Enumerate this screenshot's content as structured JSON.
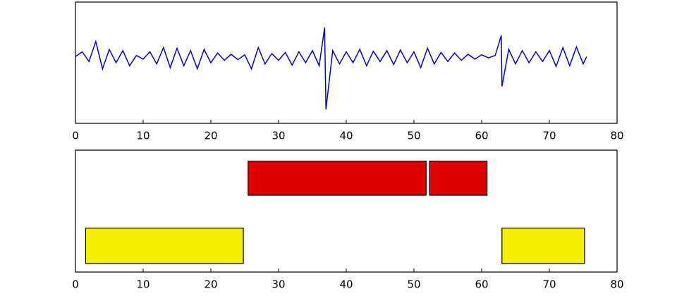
{
  "chart_data": [
    {
      "type": "line",
      "color": "#0000cc",
      "x": [
        0,
        1,
        2,
        3,
        4,
        5,
        6,
        7,
        8,
        9,
        10,
        11,
        12,
        13,
        14,
        15,
        16,
        17,
        18,
        19,
        20,
        21,
        22,
        23,
        24,
        25,
        26,
        27,
        28,
        29,
        30,
        31,
        32,
        33,
        34,
        35,
        36,
        36.8,
        37,
        38,
        39,
        40,
        41,
        42,
        43,
        44,
        45,
        46,
        47,
        48,
        49,
        50,
        51,
        52,
        53,
        54,
        55,
        56,
        57,
        58,
        59,
        60,
        61,
        62,
        62.9,
        63,
        64,
        65,
        66,
        67,
        68,
        69,
        70,
        71,
        72,
        73,
        74,
        75,
        75.5
      ],
      "values": [
        0.1,
        0.18,
        0.02,
        0.35,
        -0.1,
        0.22,
        0.0,
        0.2,
        -0.05,
        0.12,
        0.06,
        0.18,
        -0.02,
        0.25,
        -0.08,
        0.24,
        -0.05,
        0.2,
        -0.1,
        0.22,
        0.0,
        0.16,
        0.04,
        0.14,
        0.05,
        0.13,
        -0.1,
        0.25,
        -0.02,
        0.15,
        0.04,
        0.17,
        -0.04,
        0.18,
        0.0,
        0.2,
        -0.05,
        0.58,
        -0.77,
        0.2,
        -0.02,
        0.18,
        0.0,
        0.22,
        -0.05,
        0.19,
        0.02,
        0.2,
        -0.03,
        0.21,
        0.0,
        0.18,
        -0.08,
        0.24,
        -0.02,
        0.17,
        0.02,
        0.16,
        0.04,
        0.14,
        0.06,
        0.13,
        0.08,
        0.12,
        0.45,
        -0.39,
        0.22,
        -0.02,
        0.2,
        0.0,
        0.18,
        0.02,
        0.2,
        -0.06,
        0.25,
        -0.05,
        0.26,
        -0.02,
        0.1
      ],
      "xlim": [
        0,
        80
      ],
      "xticks": [
        0,
        10,
        20,
        30,
        40,
        50,
        60,
        70,
        80
      ],
      "ylim": [
        -1,
        1
      ]
    },
    {
      "type": "broken_barh",
      "series": [
        {
          "color": "#e00000",
          "xranges": [
            [
              25.5,
              26.3
            ],
            [
              52.3,
              8.5
            ]
          ],
          "yrange": [
            6.3,
            2.8
          ]
        },
        {
          "color": "#f5f000",
          "xranges": [
            [
              1.5,
              23.3
            ],
            [
              63,
              12.2
            ]
          ],
          "yrange": [
            0.7,
            2.9
          ]
        }
      ],
      "xlim": [
        0,
        80
      ],
      "xticks": [
        0,
        10,
        20,
        30,
        40,
        50,
        60,
        70,
        80
      ],
      "ylim": [
        0,
        10
      ]
    }
  ]
}
